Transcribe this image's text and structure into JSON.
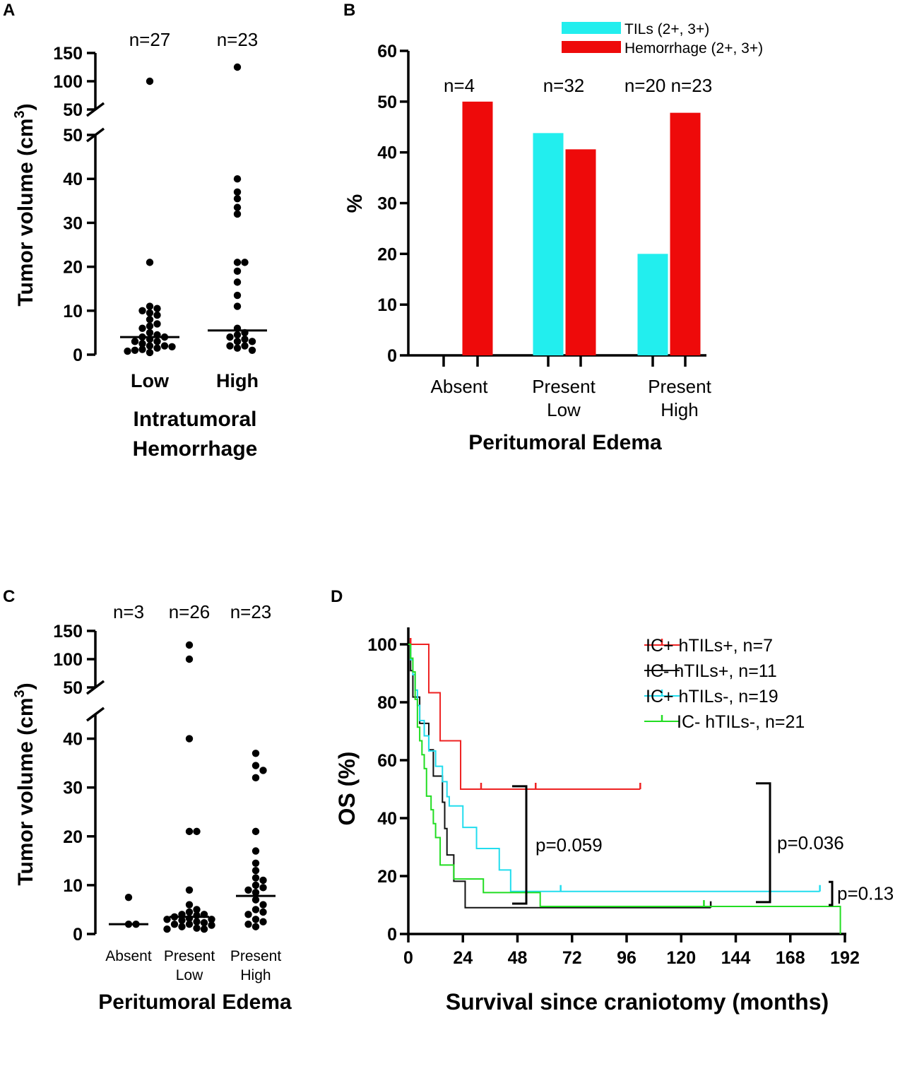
{
  "panels": {
    "A": {
      "letter": "A",
      "ylabel": "Tumor volume (cm",
      "ylabel_sup": "3",
      "ylabel_close": ")",
      "xlabel_line1": "Intratumoral",
      "xlabel_line2": "Hemorrhage",
      "n_labels": [
        "n=27",
        "n=23"
      ]
    },
    "B": {
      "letter": "B",
      "ylabel": "%",
      "xlabel": "Peritumoral Edema",
      "n_labels": [
        "n=4",
        "n=32",
        "n=20 n=23"
      ]
    },
    "C": {
      "letter": "C",
      "ylabel": "Tumor volume (cm",
      "ylabel_sup": "3",
      "ylabel_close": ")",
      "xlabel": "Peritumoral Edema",
      "n_labels": [
        "n=3",
        "n=26",
        "n=23"
      ]
    },
    "D": {
      "letter": "D",
      "ylabel": "OS (%)",
      "xlabel": "Survival since craniotomy (months)",
      "p_values": [
        "p=0.059",
        "p=0.036",
        "p=0.13"
      ]
    }
  },
  "chart_data": [
    {
      "panel": "A",
      "type": "scatter",
      "title": "",
      "xlabel": "Intratumoral Hemorrhage",
      "ylabel": "Tumor volume (cm3)",
      "categories": [
        "Low",
        "High"
      ],
      "axis_break": {
        "lower_range": [
          0,
          50
        ],
        "upper_range": [
          50,
          150
        ]
      },
      "lower_ticks": [
        0,
        10,
        20,
        30,
        40,
        50
      ],
      "upper_ticks": [
        50,
        100,
        150
      ],
      "groups": [
        {
          "name": "Low",
          "n": 27,
          "median": 4,
          "values": [
            100,
            21,
            11,
            10.5,
            10,
            9.5,
            9,
            8,
            7,
            6.5,
            6,
            5,
            4.5,
            4,
            4,
            3.5,
            3,
            3,
            2.5,
            2,
            2,
            1.8,
            1.5,
            1.2,
            1,
            0.8,
            0.5
          ]
        },
        {
          "name": "High",
          "n": 23,
          "median": 5.5,
          "values": [
            125,
            40,
            37,
            35.5,
            33.5,
            32,
            21,
            21,
            19,
            16.5,
            13.5,
            11,
            6,
            5,
            4.5,
            4,
            3.5,
            3,
            3,
            2,
            2,
            1.5,
            1
          ]
        }
      ]
    },
    {
      "panel": "B",
      "type": "bar",
      "title": "",
      "xlabel": "Peritumoral Edema",
      "ylabel": "%",
      "ylim": [
        0,
        60
      ],
      "yticks": [
        0,
        10,
        20,
        30,
        40,
        50,
        60
      ],
      "categories": [
        "Absent",
        "Present Low",
        "Present High"
      ],
      "series": [
        {
          "name": "TILs (2+, 3+)",
          "color": "#22eeee",
          "values": [
            0,
            43.8,
            20
          ]
        },
        {
          "name": "Hemorrhage (2+, 3+)",
          "color": "#ee0a0a",
          "values": [
            50,
            40.6,
            47.8
          ]
        }
      ]
    },
    {
      "panel": "C",
      "type": "scatter",
      "title": "",
      "xlabel": "Peritumoral Edema",
      "ylabel": "Tumor volume (cm3)",
      "categories": [
        "Absent",
        "Present Low",
        "Present High"
      ],
      "axis_break": {
        "lower_range": [
          0,
          45
        ],
        "upper_range": [
          50,
          150
        ]
      },
      "lower_ticks": [
        0,
        10,
        20,
        30,
        40
      ],
      "upper_ticks": [
        50,
        100,
        150
      ],
      "groups": [
        {
          "name": "Absent",
          "n": 3,
          "median": 2,
          "values": [
            7.5,
            2,
            2
          ]
        },
        {
          "name": "Present Low",
          "n": 26,
          "median": 3.5,
          "values": [
            125,
            100,
            40,
            21,
            21,
            9,
            6,
            5,
            4.5,
            4,
            4,
            3.8,
            3.5,
            3.2,
            3,
            3,
            2.8,
            2.5,
            2.3,
            2,
            2,
            1.8,
            1.5,
            1.2,
            1,
            1
          ]
        },
        {
          "name": "Present High",
          "n": 23,
          "median": 7.8,
          "values": [
            37,
            34.5,
            33.5,
            32,
            21,
            17,
            14.5,
            13,
            11.5,
            11,
            10,
            9.5,
            9,
            8.5,
            7,
            6,
            5,
            4.5,
            4,
            3,
            2.5,
            2,
            1.5
          ]
        }
      ]
    },
    {
      "panel": "D",
      "type": "line",
      "subtype": "kaplan-meier step",
      "title": "",
      "xlabel": "Survival since craniotomy (months)",
      "ylabel": "OS (%)",
      "xlim": [
        0,
        192
      ],
      "ylim": [
        0,
        100
      ],
      "xticks": [
        0,
        24,
        48,
        72,
        96,
        120,
        144,
        168,
        192
      ],
      "yticks": [
        0,
        20,
        40,
        60,
        80,
        100
      ],
      "legend_position": "top-right",
      "series": [
        {
          "name": "IC+ hTILs+, n=7",
          "color": "#ee2222",
          "x": [
            0,
            9,
            14,
            23,
            102
          ],
          "y": [
            100,
            83.3,
            66.7,
            50,
            50
          ],
          "censored": [
            [
              1,
              100
            ],
            [
              32,
              50
            ],
            [
              56,
              50
            ],
            [
              102,
              50
            ]
          ]
        },
        {
          "name": "IC- hTILs+, n=11",
          "color": "#111111",
          "x": [
            0,
            1,
            2,
            5,
            9,
            11,
            15,
            16,
            17,
            20,
            25,
            133
          ],
          "y": [
            100,
            90.9,
            81.8,
            72.7,
            63.6,
            54.5,
            45.5,
            36.4,
            27.3,
            18.2,
            9.1,
            9.1
          ],
          "censored": [
            [
              133,
              9.1
            ]
          ]
        },
        {
          "name": "IC+ hTILs-, n=19",
          "color": "#22ddee",
          "x": [
            0,
            1,
            2,
            3,
            4,
            5,
            7,
            9,
            12,
            15,
            17,
            18,
            24,
            30,
            40,
            45,
            181
          ],
          "y": [
            100,
            94.7,
            89.5,
            84.2,
            78.9,
            73.7,
            68.4,
            63.2,
            57.9,
            52.6,
            47.4,
            44.2,
            36.8,
            29.5,
            22.1,
            14.7,
            14.7
          ],
          "censored": [
            [
              67,
              14.7
            ],
            [
              181,
              14.7
            ]
          ]
        },
        {
          "name": "IC- hTILs-, n=21",
          "color": "#22dd22",
          "x": [
            0,
            1,
            2,
            3,
            4,
            5,
            6,
            7,
            8,
            10,
            11,
            12,
            14,
            20,
            33,
            58,
            190,
            190
          ],
          "y": [
            100,
            95.2,
            90.5,
            81,
            71.4,
            66.7,
            61.9,
            57.1,
            47.6,
            42.9,
            38.1,
            33.3,
            23.8,
            19,
            14.3,
            9.5,
            9.5,
            0
          ],
          "censored": [
            [
              130,
              9.5
            ]
          ]
        }
      ],
      "comparisons": [
        {
          "label": "p=0.059",
          "y_range": [
            10.5,
            51
          ]
        },
        {
          "label": "p=0.036",
          "y_range": [
            11,
            52
          ]
        },
        {
          "label": "p=0.13",
          "y_range": [
            10,
            18
          ]
        }
      ]
    }
  ]
}
